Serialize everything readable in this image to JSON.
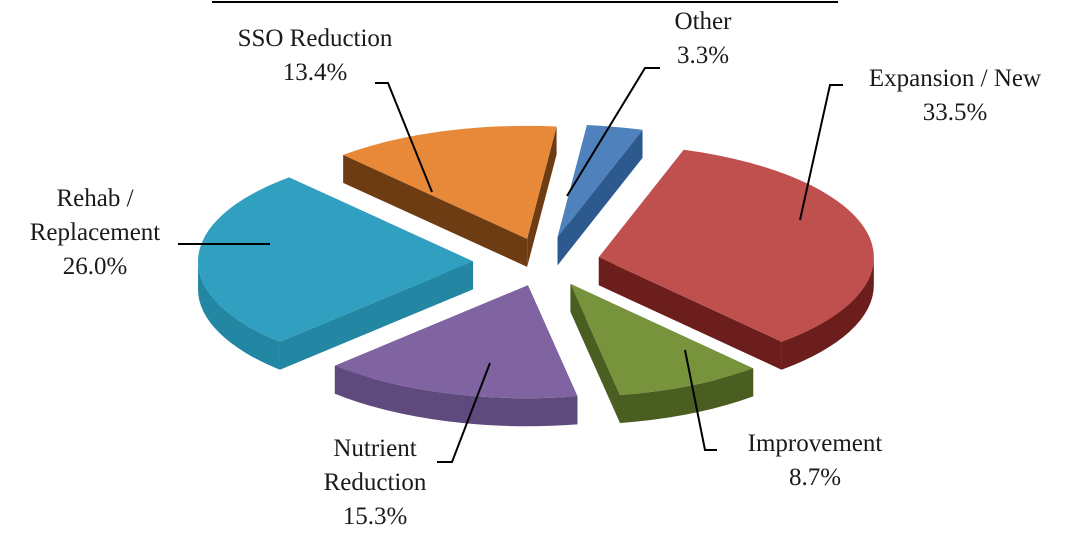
{
  "chart_data": {
    "type": "pie",
    "style": "exploded-3d",
    "slices": [
      {
        "label": "Expansion / New",
        "value": 33.5,
        "value_label": "33.5%",
        "color": "#c0504d",
        "side_color": "#6b1e1c"
      },
      {
        "label": "Improvement",
        "value": 8.7,
        "value_label": "8.7%",
        "color": "#77933c",
        "side_color": "#4a5e22"
      },
      {
        "label": "Nutrient Reduction",
        "value": 15.3,
        "value_label": "15.3%",
        "color": "#8064a2",
        "side_color": "#5f4a7e"
      },
      {
        "label": "Rehab / Replacement",
        "value": 26.0,
        "value_label": "26.0%",
        "color": "#31a0c0",
        "side_color": "#2386a3"
      },
      {
        "label": "SSO Reduction",
        "value": 13.4,
        "value_label": "13.4%",
        "color": "#e8893a",
        "side_color": "#6e3c12"
      },
      {
        "label": "Other",
        "value": 3.3,
        "value_label": "3.3%",
        "color": "#4f81bd",
        "side_color": "#2c5a8e"
      }
    ],
    "legend": "none",
    "grid": false
  }
}
